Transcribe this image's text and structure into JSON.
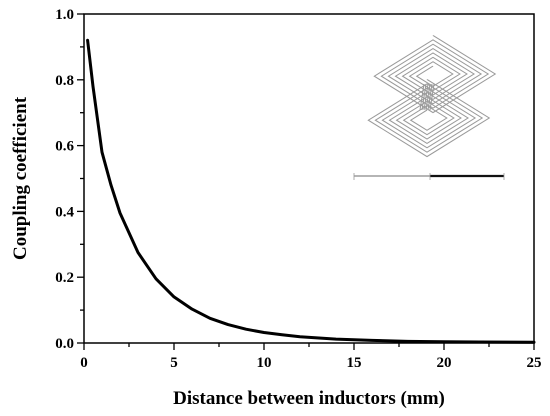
{
  "chart_data": {
    "type": "line",
    "title": "",
    "xlabel": "Distance between inductors (mm)",
    "ylabel": "Coupling coefficient",
    "xlim": [
      0,
      25
    ],
    "ylim": [
      0,
      1.0
    ],
    "xticks": [
      0,
      5,
      10,
      15,
      20,
      25
    ],
    "yticks": [
      0.0,
      0.2,
      0.4,
      0.6,
      0.8,
      1.0
    ],
    "xtick_labels": [
      "0",
      "5",
      "10",
      "15",
      "20",
      "25"
    ],
    "ytick_labels": [
      "0.0",
      "0.2",
      "0.4",
      "0.6",
      "0.8",
      "1.0"
    ],
    "grid": false,
    "legend": "none",
    "series": [
      {
        "x": [
          0.2,
          0.5,
          1,
          1.5,
          2,
          2.5,
          3,
          3.5,
          4,
          5,
          6,
          7,
          8,
          9,
          10,
          11,
          12,
          14,
          16,
          18,
          20,
          22,
          25
        ],
        "y": [
          0.92,
          0.78,
          0.58,
          0.48,
          0.395,
          0.335,
          0.275,
          0.235,
          0.195,
          0.14,
          0.103,
          0.075,
          0.056,
          0.042,
          0.032,
          0.025,
          0.019,
          0.012,
          0.008,
          0.005,
          0.004,
          0.003,
          0.002
        ],
        "color": "#000000"
      }
    ],
    "inset": {
      "description_icon": "stacked-spiral-inductors-icon",
      "color": "#9a9a9a"
    }
  }
}
